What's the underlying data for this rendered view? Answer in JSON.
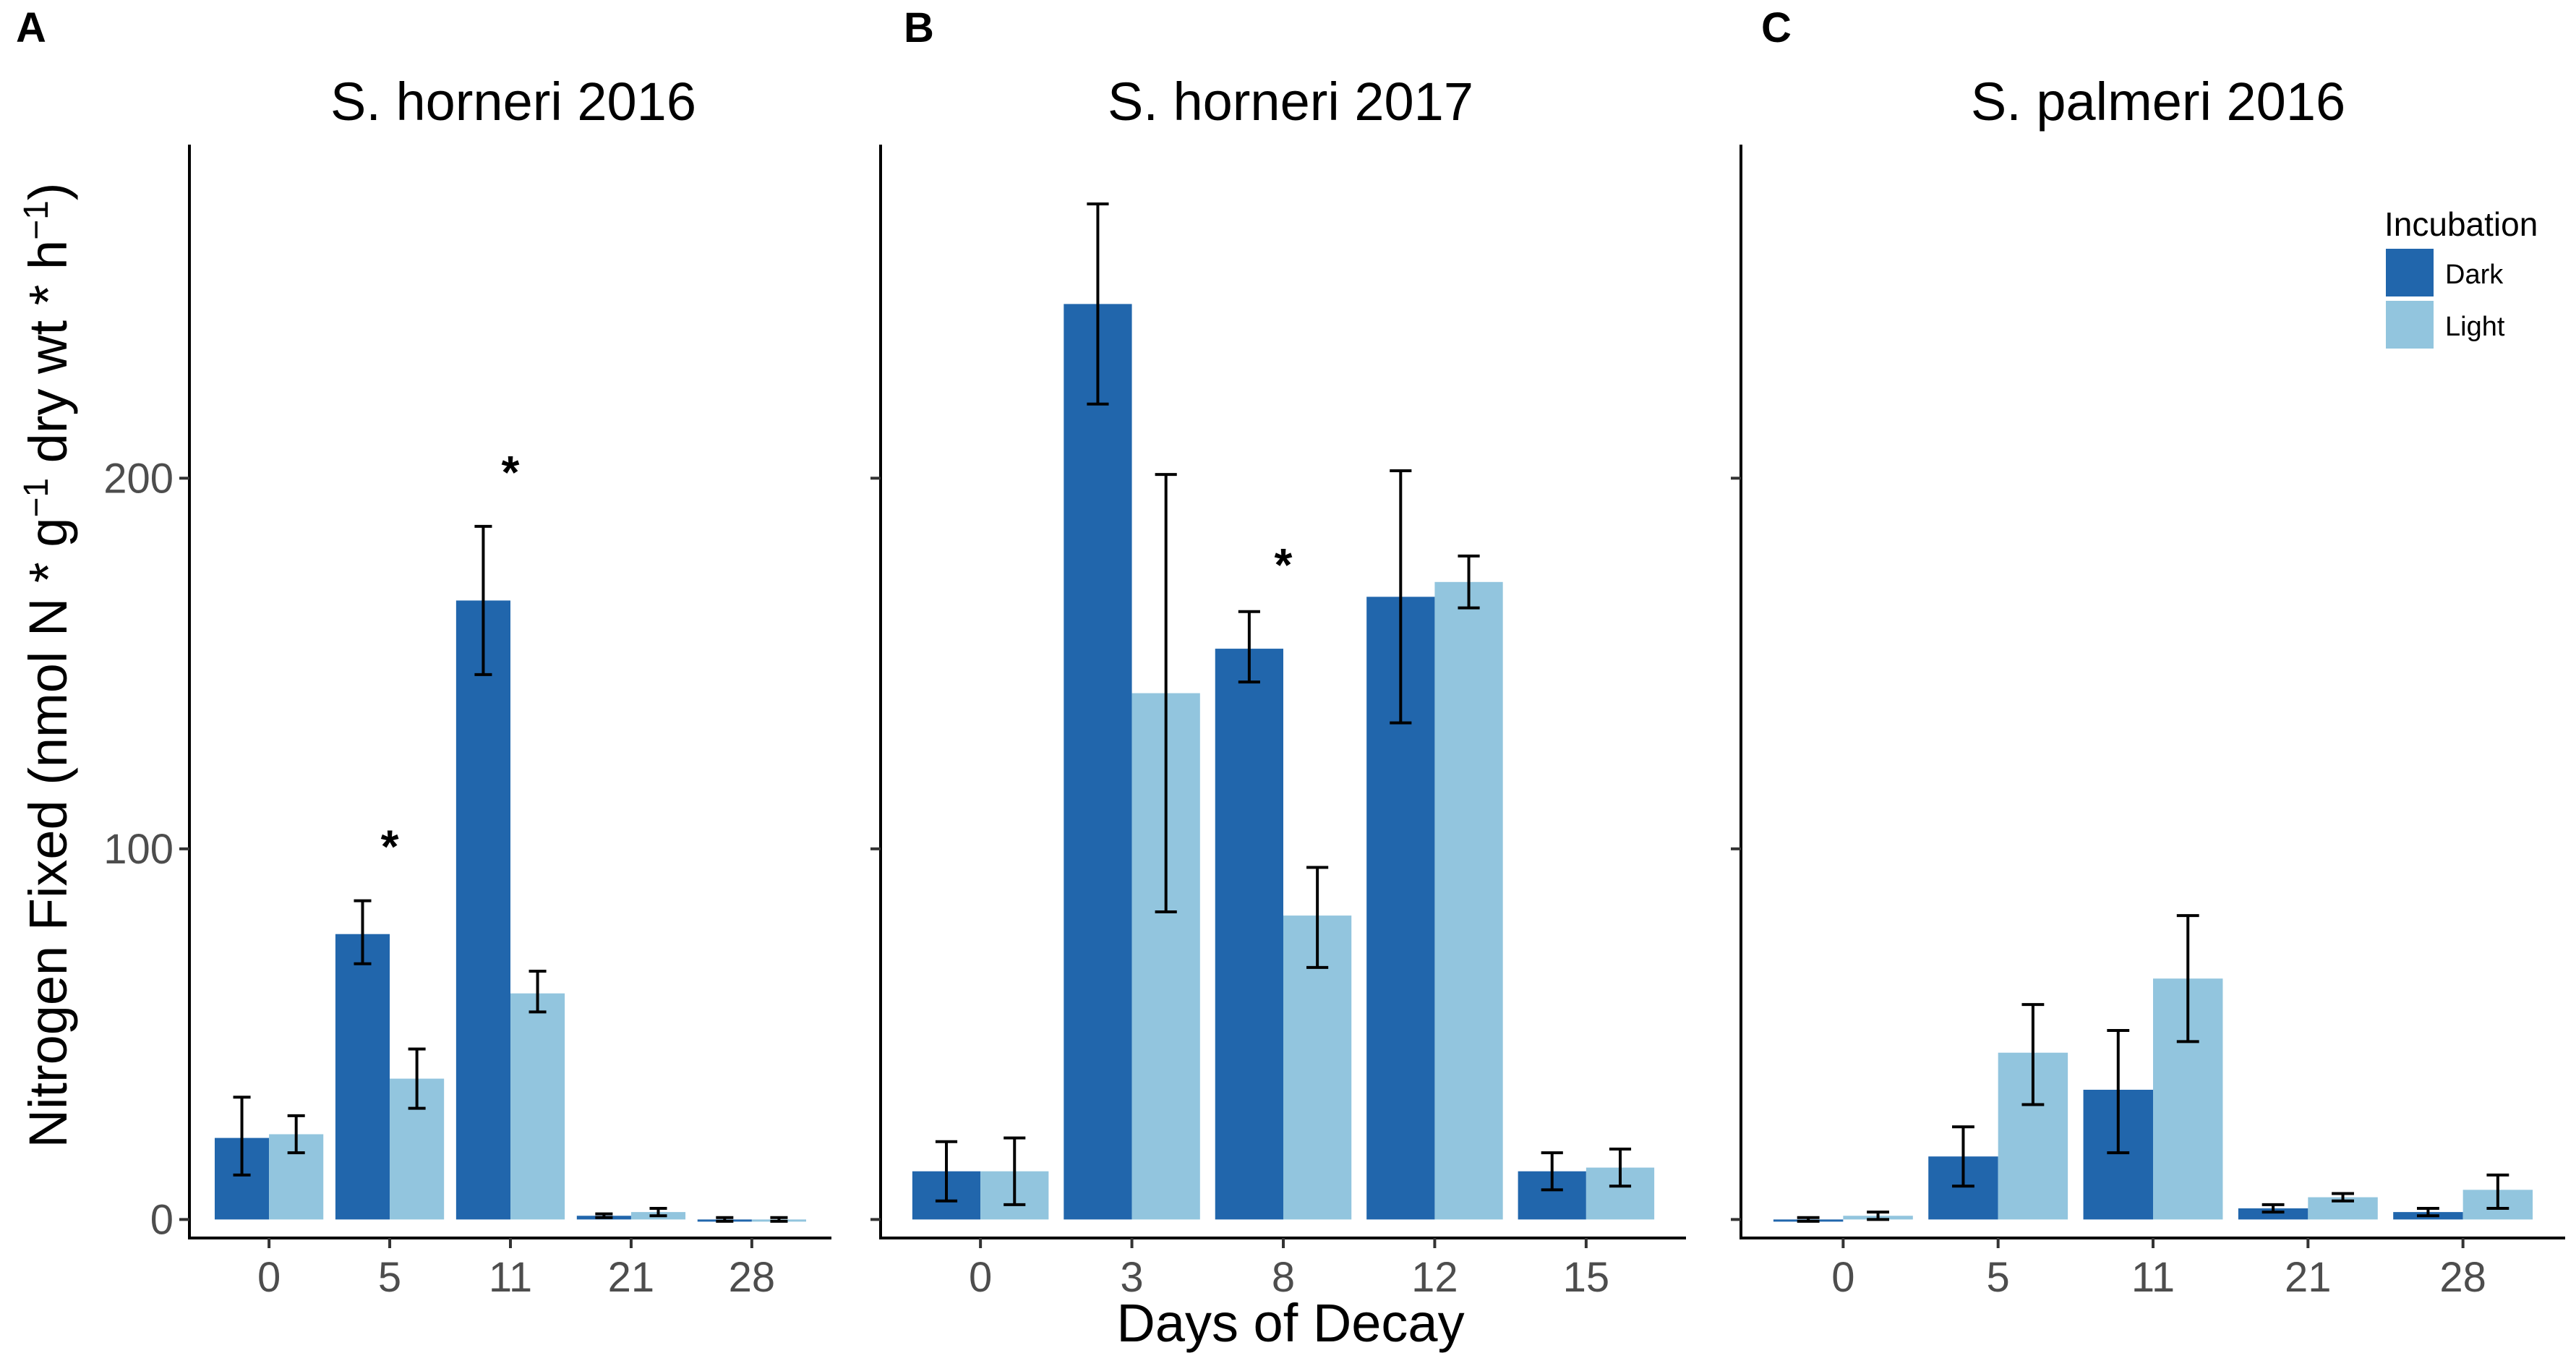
{
  "colors": {
    "Dark": "#2166ac",
    "Light": "#92c5de"
  },
  "figure": {
    "ylabel": "Nitrogen Fixed (nmol N * g",
    "ylabel_sup1": "−1",
    "ylabel_mid": " dry wt * h",
    "ylabel_sup2": "−1",
    "ylabel_end": ")",
    "xlabel": "Days of Decay",
    "legend": {
      "title": "Incubation",
      "entries": [
        "Dark",
        "Light"
      ]
    }
  },
  "chart_data": [
    {
      "panel": "A",
      "title": "S. horneri 2016",
      "type": "bar",
      "categories": [
        "0",
        "5",
        "11",
        "21",
        "28"
      ],
      "ylim": [
        -5,
        290
      ],
      "yticks": [
        0,
        100,
        200
      ],
      "show_ytick_labels": true,
      "series": [
        {
          "name": "Dark",
          "values": [
            22,
            77,
            167,
            1,
            0
          ],
          "err_low": [
            12,
            69,
            147,
            0.5,
            -0.5
          ],
          "err_high": [
            33,
            86,
            187,
            1.5,
            0.5
          ]
        },
        {
          "name": "Light",
          "values": [
            23,
            38,
            61,
            2,
            0
          ],
          "err_low": [
            18,
            30,
            56,
            1,
            -0.5
          ],
          "err_high": [
            28,
            46,
            67,
            3,
            0.5
          ]
        }
      ],
      "significance": [
        {
          "category": "5",
          "label": "*",
          "value": 101
        },
        {
          "category": "11",
          "label": "*",
          "value": 202
        }
      ]
    },
    {
      "panel": "B",
      "title": "S. horneri 2017",
      "type": "bar",
      "categories": [
        "0",
        "3",
        "8",
        "12",
        "15"
      ],
      "ylim": [
        -5,
        290
      ],
      "yticks": [
        0,
        100,
        200
      ],
      "show_ytick_labels": false,
      "series": [
        {
          "name": "Dark",
          "values": [
            13,
            247,
            154,
            168,
            13
          ],
          "err_low": [
            5,
            220,
            145,
            134,
            8
          ],
          "err_high": [
            21,
            274,
            164,
            202,
            18
          ]
        },
        {
          "name": "Light",
          "values": [
            13,
            142,
            82,
            172,
            14
          ],
          "err_low": [
            4,
            83,
            68,
            165,
            9
          ],
          "err_high": [
            22,
            201,
            95,
            179,
            19
          ]
        }
      ],
      "significance": [
        {
          "category": "8",
          "label": "*",
          "value": 177
        }
      ]
    },
    {
      "panel": "C",
      "title": "S. palmeri 2016",
      "type": "bar",
      "categories": [
        "0",
        "5",
        "11",
        "21",
        "28"
      ],
      "ylim": [
        -5,
        290
      ],
      "yticks": [
        0,
        100,
        200
      ],
      "show_ytick_labels": false,
      "series": [
        {
          "name": "Dark",
          "values": [
            0,
            17,
            35,
            3,
            2
          ],
          "err_low": [
            -0.5,
            9,
            18,
            2,
            1
          ],
          "err_high": [
            0.5,
            25,
            51,
            4,
            3
          ]
        },
        {
          "name": "Light",
          "values": [
            1,
            45,
            65,
            6,
            8
          ],
          "err_low": [
            0,
            31,
            48,
            5,
            3
          ],
          "err_high": [
            2,
            58,
            82,
            7,
            12
          ]
        }
      ],
      "significance": []
    }
  ]
}
